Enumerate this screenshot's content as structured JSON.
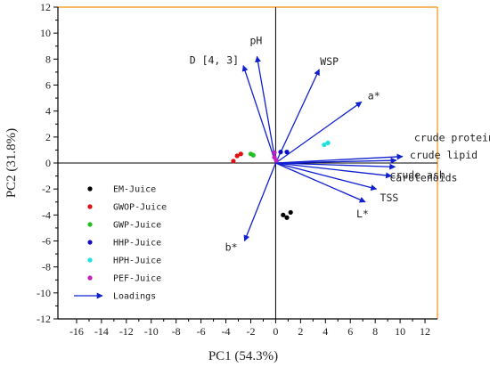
{
  "chart_data": {
    "type": "scatter",
    "xlabel": "PC1 (54.3%)",
    "ylabel": "PC2 (31.8%)",
    "xlim": [
      -17.5,
      13
    ],
    "ylim": [
      -12,
      12
    ],
    "xticks": [
      -16,
      -14,
      -12,
      -10,
      -8,
      -6,
      -4,
      -2,
      0,
      2,
      4,
      6,
      8,
      10,
      12
    ],
    "yticks": [
      -12,
      -10,
      -8,
      -6,
      -4,
      -2,
      0,
      2,
      4,
      6,
      8,
      10,
      12
    ],
    "grid": false,
    "frame_color": "#f5a030",
    "series": [
      {
        "name": "EM-Juice",
        "color": "#000000",
        "points": [
          [
            0.6,
            -4.0
          ],
          [
            0.9,
            -4.2
          ],
          [
            1.2,
            -3.8
          ]
        ]
      },
      {
        "name": "GWOP-Juice",
        "color": "#e01010",
        "points": [
          [
            -3.4,
            0.15
          ],
          [
            -3.1,
            0.55
          ],
          [
            -2.8,
            0.7
          ]
        ]
      },
      {
        "name": "GWP-Juice",
        "color": "#20c020",
        "points": [
          [
            -2.0,
            0.7
          ],
          [
            -1.8,
            0.6
          ]
        ]
      },
      {
        "name": "HHP-Juice",
        "color": "#1010c0",
        "points": [
          [
            0.4,
            0.85
          ],
          [
            0.9,
            0.85
          ]
        ]
      },
      {
        "name": "HPH-Juice",
        "color": "#20e0e0",
        "points": [
          [
            3.9,
            1.4
          ],
          [
            4.2,
            1.55
          ]
        ]
      },
      {
        "name": "PEF-Juice",
        "color": "#c020c0",
        "points": [
          [
            -0.1,
            0.45
          ],
          [
            -0.1,
            0.8
          ],
          [
            0.05,
            0.2
          ]
        ]
      }
    ],
    "loadings": {
      "name": "Loadings",
      "color": "#1020d0",
      "vectors": [
        {
          "label": "D [4, 3]",
          "x": -2.6,
          "y": 7.5
        },
        {
          "label": "pH",
          "x": -1.5,
          "y": 8.2
        },
        {
          "label": "WSP",
          "x": 3.5,
          "y": 7.2
        },
        {
          "label": "a*",
          "x": 6.9,
          "y": 4.7
        },
        {
          "label": "crude protein",
          "x": 10.2,
          "y": 0.5
        },
        {
          "label": "crude lipid",
          "x": 9.7,
          "y": 0.2
        },
        {
          "label": "crude ash",
          "x": 9.6,
          "y": -0.3
        },
        {
          "label": "carotenoids",
          "x": 9.3,
          "y": -1.0
        },
        {
          "label": "TSS",
          "x": 8.1,
          "y": -2.0
        },
        {
          "label": "L*",
          "x": 7.2,
          "y": -3.0
        },
        {
          "label": "b*",
          "x": -2.5,
          "y": -6.0
        }
      ]
    }
  }
}
